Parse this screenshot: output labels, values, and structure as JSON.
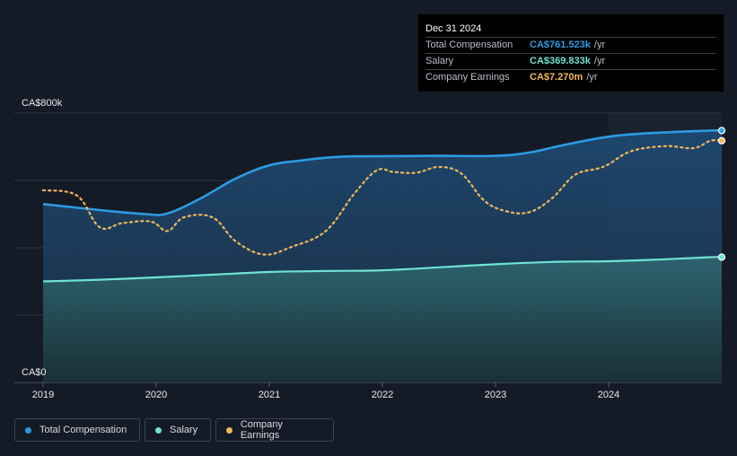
{
  "colors": {
    "background": "#151b26",
    "total_compensation": "#2d9be3",
    "salary": "#6fe3d3",
    "company_earnings": "#f0b65a",
    "gridline": "#2e3540"
  },
  "tooltip": {
    "title": "Dec 31 2024",
    "rows": [
      {
        "label": "Total Compensation",
        "value": "CA$761.523k",
        "unit": "/yr"
      },
      {
        "label": "Salary",
        "value": "CA$369.833k",
        "unit": "/yr"
      },
      {
        "label": "Company Earnings",
        "value": "CA$7.270m",
        "unit": "/yr"
      }
    ]
  },
  "legend": {
    "items": [
      {
        "label": "Total Compensation"
      },
      {
        "label": "Salary"
      },
      {
        "label": "Company Earnings"
      }
    ]
  },
  "chart_data": {
    "type": "line",
    "title": "",
    "xlabel": "",
    "ylabel": "",
    "y_axis_labels": {
      "top": "CA$800k",
      "bottom": "CA$0"
    },
    "ylim": [
      0,
      800
    ],
    "y_units": "CA$ thousands",
    "xlim": [
      2019.0,
      2025.0
    ],
    "x_ticks": [
      2019,
      2020,
      2021,
      2022,
      2023,
      2024
    ],
    "x_tick_labels": [
      "2019",
      "2020",
      "2021",
      "2022",
      "2023",
      "2024"
    ],
    "highlight_from_x": 2024.0,
    "gridlines": [
      0,
      200,
      400,
      600,
      800
    ],
    "series": [
      {
        "name": "Total Compensation",
        "color_key": "total_compensation",
        "style": "solid-area",
        "x": [
          2019.0,
          2019.5,
          2019.9,
          2020.1,
          2020.4,
          2020.7,
          2021.0,
          2021.3,
          2021.6,
          2022.0,
          2022.5,
          2023.0,
          2023.3,
          2023.6,
          2024.0,
          2024.4,
          2024.9
        ],
        "y": [
          530,
          512,
          500,
          502,
          548,
          605,
          645,
          660,
          670,
          672,
          673,
          673,
          683,
          705,
          730,
          741,
          748
        ]
      },
      {
        "name": "Salary",
        "color_key": "salary",
        "style": "solid-area",
        "x": [
          2019.0,
          2019.5,
          2020.0,
          2020.5,
          2021.0,
          2021.5,
          2022.0,
          2022.5,
          2023.0,
          2023.5,
          2024.0,
          2024.5,
          2024.9
        ],
        "y": [
          300,
          305,
          312,
          320,
          328,
          331,
          333,
          342,
          351,
          358,
          360,
          366,
          372
        ]
      },
      {
        "name": "Company Earnings",
        "color_key": "company_earnings",
        "style": "dotted",
        "units_note": "relative scale, CA$ millions",
        "x": [
          2019.0,
          2019.3,
          2019.5,
          2019.7,
          2019.95,
          2020.1,
          2020.25,
          2020.5,
          2020.7,
          2020.95,
          2021.2,
          2021.5,
          2021.75,
          2021.95,
          2022.1,
          2022.3,
          2022.5,
          2022.7,
          2022.9,
          2023.1,
          2023.3,
          2023.5,
          2023.7,
          2023.9,
          2024.0,
          2024.2,
          2024.5,
          2024.75,
          2024.9
        ],
        "y": [
          571,
          555,
          461,
          473,
          478,
          450,
          491,
          490,
          420,
          380,
          403,
          450,
          560,
          630,
          625,
          623,
          640,
          620,
          540,
          508,
          506,
          547,
          616,
          635,
          648,
          687,
          702,
          696,
          718
        ]
      }
    ]
  }
}
